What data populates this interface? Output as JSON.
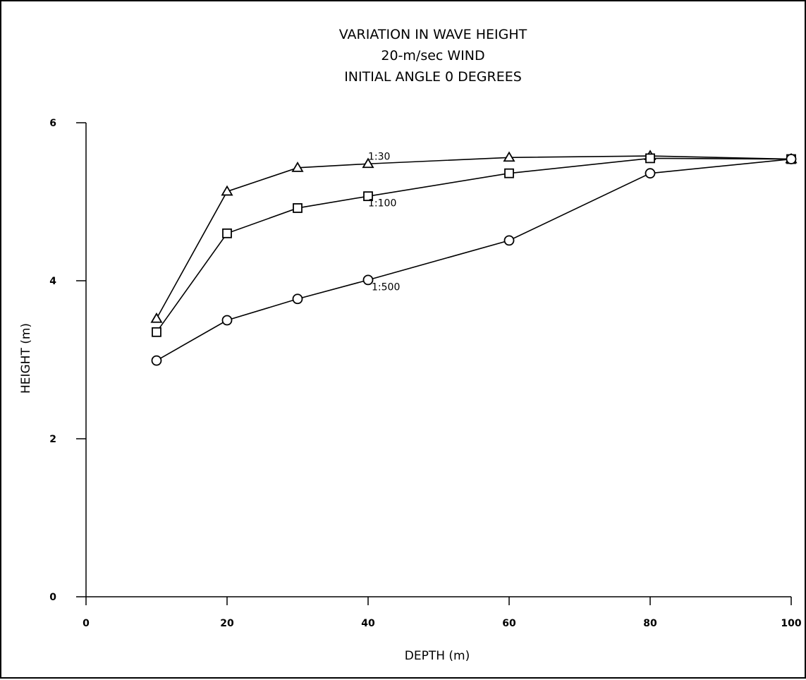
{
  "chart_data": {
    "type": "line",
    "title_lines": [
      "VARIATION IN WAVE HEIGHT",
      "20-m/sec WIND",
      "INITIAL ANGLE 0 DEGREES"
    ],
    "xlabel": "DEPTH  (m)",
    "ylabel": "HEIGHT  (m)",
    "xlim": [
      0,
      100
    ],
    "ylim": [
      0,
      6
    ],
    "xticks": [
      0,
      20,
      40,
      60,
      80,
      100
    ],
    "yticks": [
      0,
      2,
      4,
      6
    ],
    "grid": false,
    "series": [
      {
        "name": "1:30",
        "marker": "triangle",
        "x": [
          10,
          20,
          30,
          40,
          60,
          80,
          100
        ],
        "y": [
          3.52,
          5.13,
          5.43,
          5.48,
          5.56,
          5.58,
          5.54
        ]
      },
      {
        "name": "1:100",
        "marker": "square",
        "x": [
          10,
          20,
          30,
          40,
          60,
          80,
          100
        ],
        "y": [
          3.35,
          4.6,
          4.92,
          5.07,
          5.36,
          5.55,
          5.54
        ]
      },
      {
        "name": "1:500",
        "marker": "circle",
        "x": [
          10,
          20,
          30,
          40,
          60,
          80,
          100
        ],
        "y": [
          2.99,
          3.5,
          3.77,
          4.01,
          4.51,
          5.36,
          5.54
        ]
      }
    ],
    "annotations": [
      {
        "text": "1:30",
        "x": 40,
        "y": 5.53,
        "series": "1:30"
      },
      {
        "text": "1:100",
        "x": 40,
        "y": 4.94,
        "series": "1:100"
      },
      {
        "text": "1:500",
        "x": 40.5,
        "y": 3.88,
        "series": "1:500"
      }
    ]
  }
}
